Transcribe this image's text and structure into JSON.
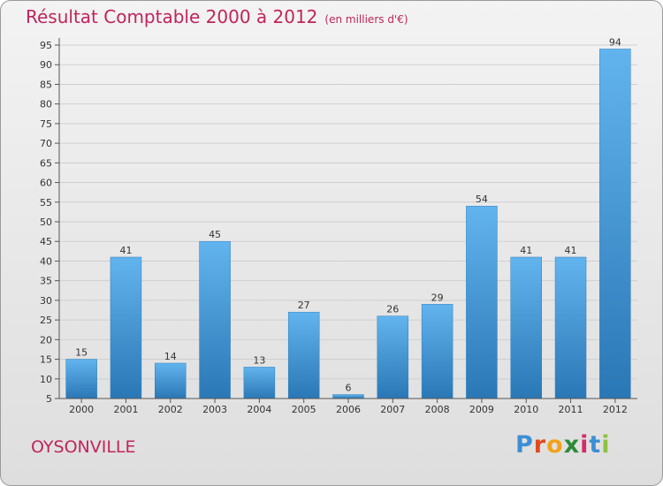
{
  "header": {
    "title": "Résultat Comptable 2000 à 2012",
    "subtitle": "(en milliers d'€)"
  },
  "footer": {
    "commune": "OYSONVILLE",
    "logo_letters": [
      "P",
      "r",
      "o",
      "x",
      "i",
      "t",
      "i"
    ],
    "logo_colors": [
      "#3c8fd4",
      "#e04a1f",
      "#f2a21a",
      "#2e8a3a",
      "#d42a6a",
      "#3c8fd4",
      "#8bc23f"
    ]
  },
  "colors": {
    "title": "#c0245c",
    "bar_top": "#62b4ee",
    "bar_bottom": "#2a77b5",
    "grid": "#cfcfcf",
    "axis": "#555555",
    "label": "#333333"
  },
  "chart_data": {
    "type": "bar",
    "title": "Résultat Comptable 2000 à 2012",
    "subtitle": "(en milliers d'€)",
    "categories": [
      "2000",
      "2001",
      "2002",
      "2003",
      "2004",
      "2005",
      "2006",
      "2007",
      "2008",
      "2009",
      "2010",
      "2011",
      "2012"
    ],
    "values": [
      15,
      41,
      14,
      45,
      13,
      27,
      6,
      26,
      29,
      54,
      41,
      41,
      94
    ],
    "ylim": [
      5,
      95
    ],
    "yticks": [
      5,
      10,
      15,
      20,
      25,
      30,
      35,
      40,
      45,
      50,
      55,
      60,
      65,
      70,
      75,
      80,
      85,
      90,
      95
    ],
    "xlabel": "",
    "ylabel": "",
    "grid": true
  }
}
